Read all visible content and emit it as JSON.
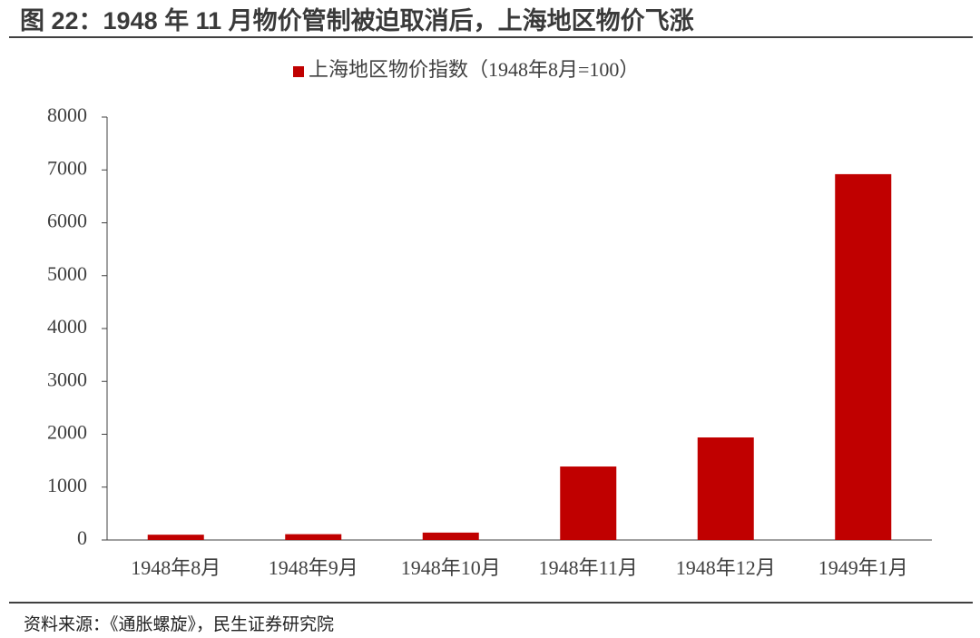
{
  "chart_data": {
    "type": "bar",
    "title": "图 22：1948 年 11 月物价管制被迫取消后，上海地区物价飞涨",
    "source": "资料来源：《通胀螺旋》，民生证券研究院",
    "categories": [
      "1948年8月",
      "1948年9月",
      "1948年10月",
      "1948年11月",
      "1948年12月",
      "1949年1月"
    ],
    "series": [
      {
        "name": "上海地区物价指数（1948年8月=100）",
        "color": "#c00000",
        "values": [
          100,
          110,
          140,
          1390,
          1940,
          6920
        ]
      }
    ],
    "ylim": [
      0,
      8000
    ],
    "yticks": [
      0,
      1000,
      2000,
      3000,
      4000,
      5000,
      6000,
      7000,
      8000
    ],
    "legend": "top"
  }
}
